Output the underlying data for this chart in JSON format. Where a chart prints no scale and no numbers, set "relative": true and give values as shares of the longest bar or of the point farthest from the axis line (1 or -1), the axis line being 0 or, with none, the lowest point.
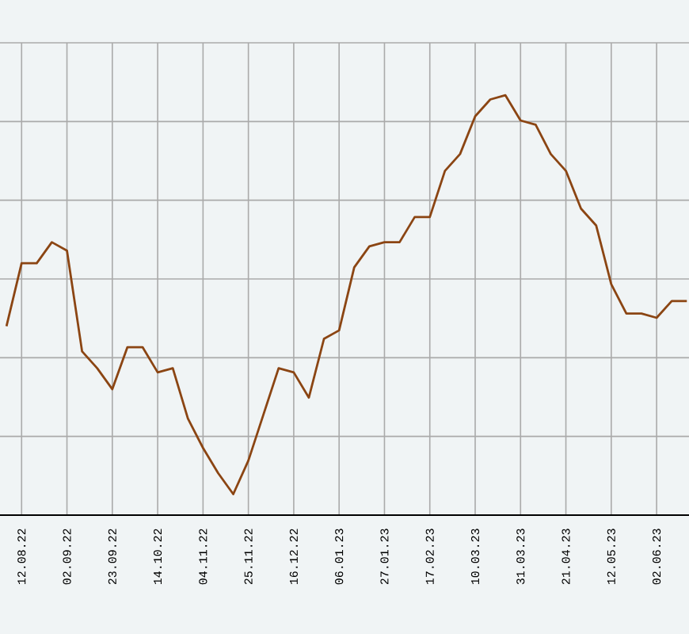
{
  "chart_data": {
    "type": "line",
    "relative": true,
    "x": [
      "2022-08-05",
      "2022-08-12",
      "2022-08-19",
      "2022-08-26",
      "2022-09-02",
      "2022-09-09",
      "2022-09-16",
      "2022-09-23",
      "2022-09-30",
      "2022-10-07",
      "2022-10-14",
      "2022-10-21",
      "2022-10-28",
      "2022-11-04",
      "2022-11-11",
      "2022-11-18",
      "2022-11-25",
      "2022-12-02",
      "2022-12-09",
      "2022-12-16",
      "2022-12-23",
      "2022-12-30",
      "2023-01-06",
      "2023-01-13",
      "2023-01-20",
      "2023-01-27",
      "2023-02-03",
      "2023-02-10",
      "2023-02-17",
      "2023-02-24",
      "2023-03-03",
      "2023-03-10",
      "2023-03-17",
      "2023-03-24",
      "2023-03-31",
      "2023-04-07",
      "2023-04-14",
      "2023-04-21",
      "2023-04-28",
      "2023-05-05",
      "2023-05-12",
      "2023-05-19",
      "2023-05-26",
      "2023-06-02",
      "2023-06-09",
      "2023-06-16"
    ],
    "series": [
      {
        "color": "#8b4513",
        "values": [
          0.45,
          0.6,
          0.6,
          0.65,
          0.63,
          0.39,
          0.35,
          0.3,
          0.4,
          0.4,
          0.34,
          0.35,
          0.23,
          0.16,
          0.1,
          0.05,
          0.13,
          0.24,
          0.35,
          0.34,
          0.28,
          0.42,
          0.44,
          0.59,
          0.64,
          0.65,
          0.65,
          0.71,
          0.71,
          0.82,
          0.86,
          0.95,
          0.99,
          1,
          0.94,
          0.93,
          0.86,
          0.82,
          0.73,
          0.69,
          0.55,
          0.48,
          0.48,
          0.47,
          0.51,
          0.51
        ]
      }
    ],
    "xlim": [
      "2022-08-02",
      "2023-06-17"
    ],
    "xticks": [
      {
        "value": "2022-08-12",
        "label": "12.08.22"
      },
      {
        "value": "2022-09-02",
        "label": "02.09.22"
      },
      {
        "value": "2022-09-23",
        "label": "23.09.22"
      },
      {
        "value": "2022-10-14",
        "label": "14.10.22"
      },
      {
        "value": "2022-11-04",
        "label": "04.11.22"
      },
      {
        "value": "2022-11-25",
        "label": "25.11.22"
      },
      {
        "value": "2022-12-16",
        "label": "16.12.22"
      },
      {
        "value": "2023-01-06",
        "label": "06.01.23"
      },
      {
        "value": "2023-01-27",
        "label": "27.01.23"
      },
      {
        "value": "2023-02-17",
        "label": "17.02.23"
      },
      {
        "value": "2023-03-10",
        "label": "10.03.23"
      },
      {
        "value": "2023-03-31",
        "label": "31.03.23"
      },
      {
        "value": "2023-04-21",
        "label": "21.04.23"
      },
      {
        "value": "2023-05-12",
        "label": "12.05.23"
      },
      {
        "value": "2023-06-02",
        "label": "02.06.23"
      }
    ],
    "grid": true,
    "line_style": "solid"
  }
}
